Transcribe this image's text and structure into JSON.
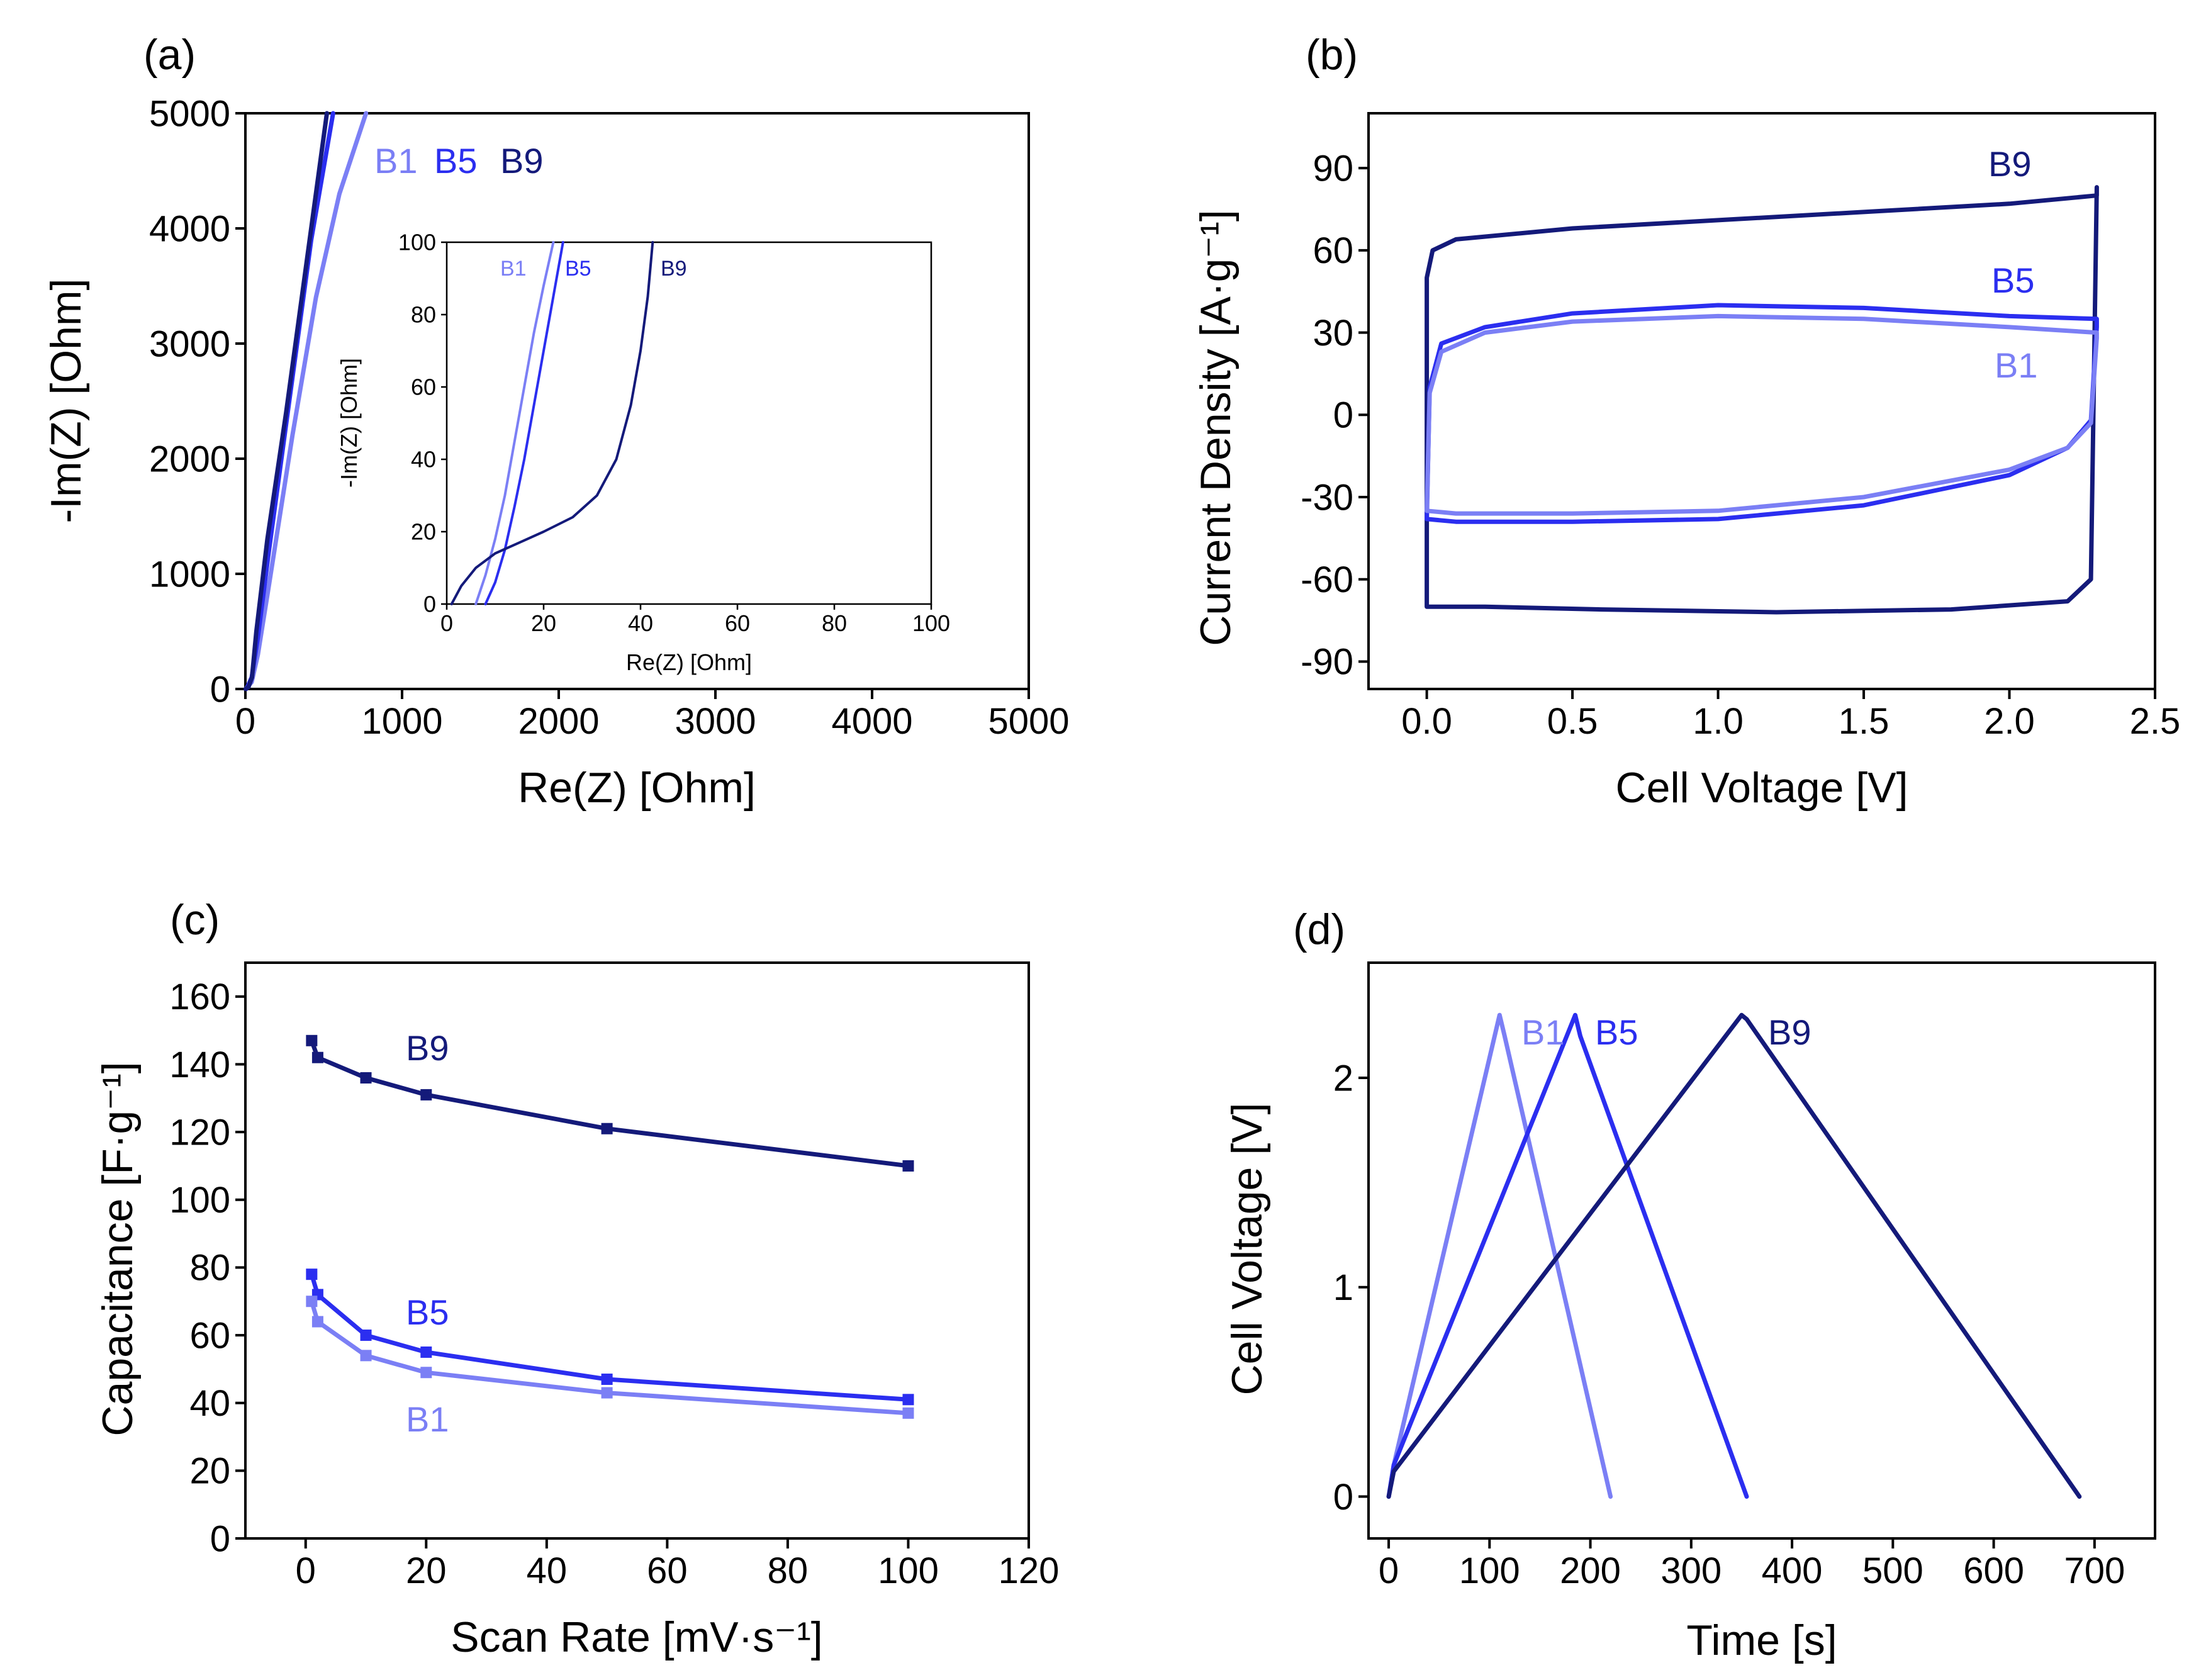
{
  "colors": {
    "B1": "#7b7ff5",
    "B5": "#2b2ef0",
    "B9": "#141a7a"
  },
  "chart_data": [
    {
      "panel": "(a)",
      "type": "line",
      "xlabel": "Re(Z) [Ohm]",
      "ylabel": "-Im(Z) [Ohm]",
      "xlim": [
        0,
        5000
      ],
      "ylim": [
        0,
        5000
      ],
      "xticks": [
        "0",
        "1000",
        "2000",
        "3000",
        "4000",
        "5000"
      ],
      "yticks": [
        "0",
        "1000",
        "2000",
        "3000",
        "4000",
        "5000"
      ],
      "legend": [
        "B1",
        "B5",
        "B9"
      ],
      "series": [
        {
          "name": "B1",
          "x": [
            2,
            10,
            40,
            80,
            150,
            300,
            450,
            600,
            770
          ],
          "y": [
            0,
            15,
            60,
            300,
            900,
            2200,
            3400,
            4300,
            5000
          ]
        },
        {
          "name": "B5",
          "x": [
            5,
            12,
            40,
            80,
            150,
            280,
            420,
            560
          ],
          "y": [
            0,
            15,
            100,
            450,
            1200,
            2500,
            3900,
            5000
          ]
        },
        {
          "name": "B9",
          "x": [
            1,
            20,
            42,
            70,
            140,
            260,
            400,
            520
          ],
          "y": [
            0,
            18,
            100,
            500,
            1300,
            2400,
            3800,
            5000
          ]
        }
      ],
      "inset": {
        "xlabel": "Re(Z) [Ohm]",
        "ylabel": "-Im(Z) [Ohm]",
        "xlim": [
          0,
          100
        ],
        "ylim": [
          0,
          100
        ],
        "xticks": [
          "0",
          "20",
          "40",
          "60",
          "80",
          "100"
        ],
        "yticks": [
          "0",
          "20",
          "40",
          "60",
          "80",
          "100"
        ],
        "series": [
          {
            "name": "B1",
            "x": [
              6,
              8,
              10,
              12,
              14,
              16,
              18,
              20,
              22
            ],
            "y": [
              0,
              8,
              18,
              30,
              45,
              60,
              75,
              88,
              100
            ]
          },
          {
            "name": "B5",
            "x": [
              8,
              10,
              12,
              14,
              16,
              18,
              20,
              22,
              24
            ],
            "y": [
              0,
              6,
              15,
              27,
              40,
              55,
              70,
              85,
              100
            ]
          },
          {
            "name": "B9",
            "x": [
              1,
              3,
              6,
              10,
              15,
              20,
              26,
              31,
              35,
              38,
              40,
              41.5,
              42.5
            ],
            "y": [
              0,
              5,
              10,
              14,
              17,
              20,
              24,
              30,
              40,
              55,
              70,
              85,
              100
            ]
          }
        ]
      }
    },
    {
      "panel": "(b)",
      "type": "line",
      "xlabel": "Cell Voltage [V]",
      "ylabel": "Current Density [A·g⁻¹]",
      "xlim": [
        -0.2,
        2.5
      ],
      "ylim": [
        -100,
        110
      ],
      "xticks": [
        "0.0",
        "0.5",
        "1.0",
        "1.5",
        "2.0",
        "2.5"
      ],
      "yticks": [
        "-90",
        "-60",
        "-30",
        "0",
        "30",
        "60",
        "90"
      ],
      "legend": [
        "B1",
        "B5",
        "B9"
      ],
      "series": [
        {
          "name": "B9",
          "x": [
            0,
            0,
            0.02,
            0.1,
            0.5,
            1.0,
            1.5,
            2.0,
            2.3,
            2.3,
            2.28,
            2.2,
            1.8,
            1.2,
            0.6,
            0.2,
            0.02,
            0
          ],
          "y": [
            -70,
            50,
            60,
            64,
            68,
            71,
            74,
            77,
            80,
            83,
            -60,
            -68,
            -71,
            -72,
            -71,
            -70,
            -70,
            -70
          ]
        },
        {
          "name": "B5",
          "x": [
            0,
            0.01,
            0.05,
            0.2,
            0.5,
            1.0,
            1.5,
            2.0,
            2.3,
            2.3,
            2.28,
            2.2,
            2.0,
            1.5,
            1.0,
            0.5,
            0.1,
            0
          ],
          "y": [
            -38,
            10,
            26,
            32,
            37,
            40,
            39,
            36,
            35,
            32,
            -2,
            -12,
            -22,
            -33,
            -38,
            -39,
            -39,
            -38
          ]
        },
        {
          "name": "B1",
          "x": [
            0,
            0.01,
            0.05,
            0.2,
            0.5,
            1.0,
            1.5,
            2.0,
            2.3,
            2.3,
            2.28,
            2.2,
            2.0,
            1.5,
            1.0,
            0.5,
            0.1,
            0
          ],
          "y": [
            -35,
            8,
            23,
            30,
            34,
            36,
            35,
            32,
            30,
            28,
            -3,
            -12,
            -20,
            -30,
            -35,
            -36,
            -36,
            -35
          ]
        }
      ]
    },
    {
      "panel": "(c)",
      "type": "line",
      "xlabel": "Scan Rate [mV·s⁻¹]",
      "ylabel": "Capacitance [F·g⁻¹]",
      "xlim": [
        -10,
        120
      ],
      "ylim": [
        0,
        170
      ],
      "xticks": [
        "0",
        "20",
        "40",
        "60",
        "80",
        "100",
        "120"
      ],
      "yticks": [
        "0",
        "20",
        "40",
        "60",
        "80",
        "100",
        "120",
        "140",
        "160"
      ],
      "legend": [
        "B1",
        "B5",
        "B9"
      ],
      "series": [
        {
          "name": "B9",
          "x": [
            1,
            2,
            10,
            20,
            50,
            100
          ],
          "y": [
            147,
            142,
            136,
            131,
            121,
            110
          ]
        },
        {
          "name": "B5",
          "x": [
            1,
            2,
            10,
            20,
            50,
            100
          ],
          "y": [
            78,
            72,
            60,
            55,
            47,
            41
          ]
        },
        {
          "name": "B1",
          "x": [
            1,
            2,
            10,
            20,
            50,
            100
          ],
          "y": [
            70,
            64,
            54,
            49,
            43,
            37
          ]
        }
      ]
    },
    {
      "panel": "(d)",
      "type": "line",
      "xlabel": "Time [s]",
      "ylabel": "Cell Voltage [V]",
      "xlim": [
        -20,
        760
      ],
      "ylim": [
        -0.2,
        2.55
      ],
      "xticks": [
        "0",
        "100",
        "200",
        "300",
        "400",
        "500",
        "600",
        "700"
      ],
      "yticks": [
        "0",
        "1",
        "2"
      ],
      "legend": [
        "B1",
        "B5",
        "B9"
      ],
      "series": [
        {
          "name": "B1",
          "x": [
            0,
            5,
            110,
            115,
            220
          ],
          "y": [
            0,
            0.15,
            2.3,
            2.2,
            0
          ]
        },
        {
          "name": "B5",
          "x": [
            0,
            5,
            185,
            190,
            355
          ],
          "y": [
            0,
            0.15,
            2.3,
            2.2,
            0
          ]
        },
        {
          "name": "B9",
          "x": [
            0,
            5,
            350,
            355,
            685
          ],
          "y": [
            0,
            0.12,
            2.3,
            2.28,
            0
          ]
        }
      ]
    }
  ]
}
